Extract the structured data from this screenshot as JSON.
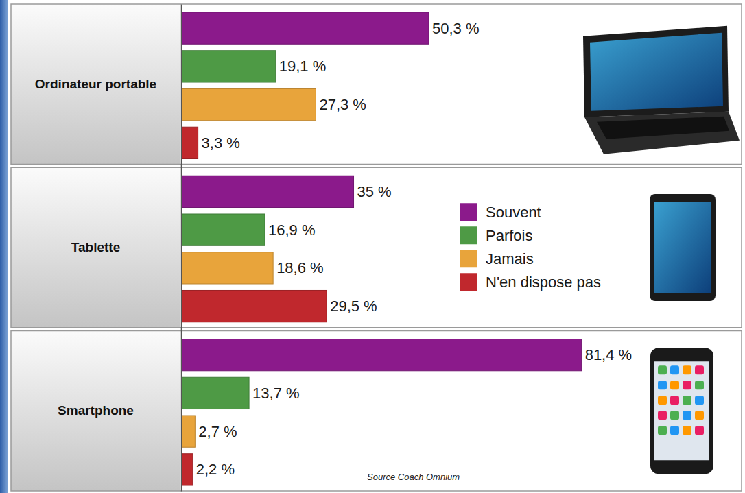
{
  "chart_data": {
    "type": "bar",
    "orientation": "horizontal",
    "categories": [
      "Ordinateur portable",
      "Tablette",
      "Smartphone"
    ],
    "series": [
      {
        "name": "Souvent",
        "color": "#8b1a8b",
        "values": [
          50.3,
          35,
          81.4
        ],
        "value_labels": [
          "50,3 %",
          "35 %",
          "81,4 %"
        ]
      },
      {
        "name": "Parfois",
        "color": "#4e9a45",
        "values": [
          19.1,
          16.9,
          13.7
        ],
        "value_labels": [
          "19,1 %",
          "16,9 %",
          "13,7 %"
        ]
      },
      {
        "name": "Jamais",
        "color": "#e8a43b",
        "values": [
          27.3,
          18.6,
          2.7
        ],
        "value_labels": [
          "27,3 %",
          "18,6 %",
          "2,7 %"
        ]
      },
      {
        "name": "N'en dispose pas",
        "color": "#c0282d",
        "values": [
          3.3,
          29.5,
          2.2
        ],
        "value_labels": [
          "3,3 %",
          "29,5 %",
          "2,2 %"
        ]
      }
    ],
    "xlim": [
      0,
      114
    ],
    "data_labels": true,
    "legend": "right",
    "tick_labels": "y",
    "grid": false,
    "annotations": [
      "Source Coach Omnium"
    ]
  }
}
